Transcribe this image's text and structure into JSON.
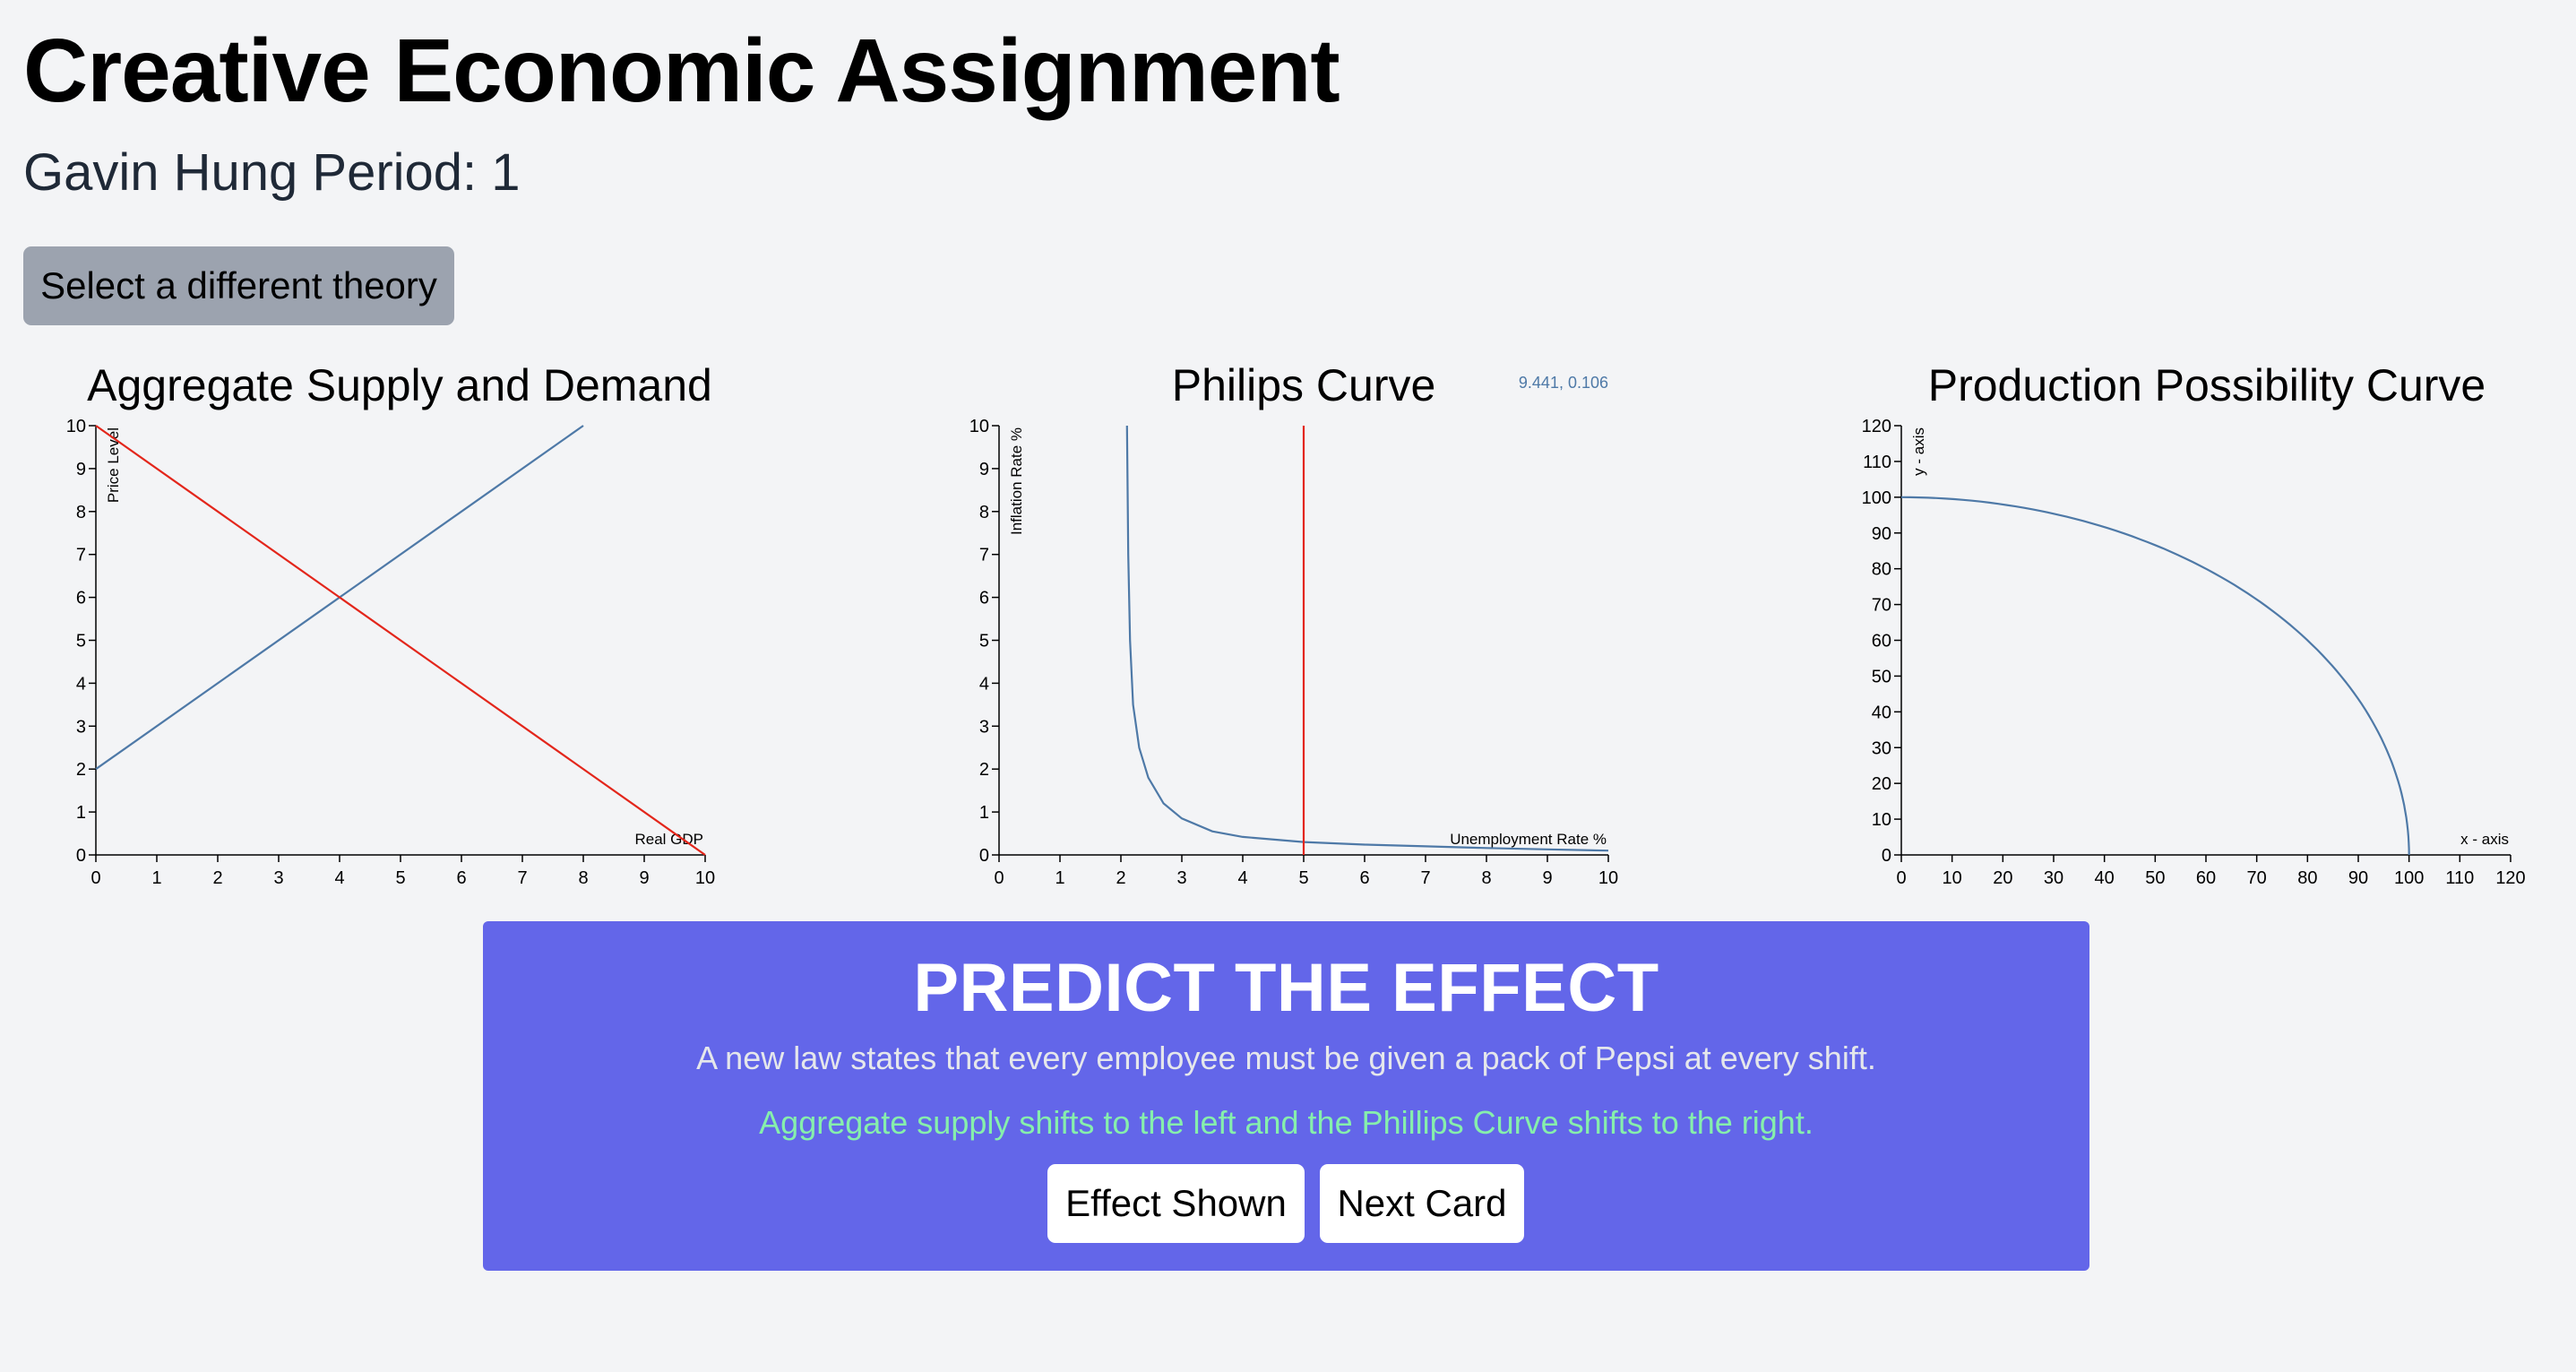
{
  "header": {
    "title": "Creative Economic Assignment",
    "subtitle": "Gavin Hung Period: 1"
  },
  "theory_button_label": "Select a different theory",
  "colors": {
    "background": "#f3f4f6",
    "series_blue": "#4e79a7",
    "series_red": "#e3261b",
    "panel": "#6366e9",
    "answer_text": "#86efac",
    "theory_button": "#9ca3af"
  },
  "chart_data": [
    {
      "type": "line",
      "title": "Aggregate Supply and Demand",
      "xlabel": "Real GDP",
      "ylabel": "Price Level",
      "xlim": [
        0,
        10
      ],
      "ylim": [
        0,
        10
      ],
      "xticks": [
        0,
        1,
        2,
        3,
        4,
        5,
        6,
        7,
        8,
        9,
        10
      ],
      "yticks": [
        0,
        1,
        2,
        3,
        4,
        5,
        6,
        7,
        8,
        9,
        10
      ],
      "grid": false,
      "series": [
        {
          "color": "#4e79a7",
          "points": [
            [
              0,
              2
            ],
            [
              8,
              10
            ]
          ]
        },
        {
          "color": "#e3261b",
          "points": [
            [
              0,
              10
            ],
            [
              10,
              0
            ]
          ]
        }
      ]
    },
    {
      "type": "line",
      "title": "Philips Curve",
      "xlabel": "Unemployment Rate %",
      "ylabel": "Inflation Rate %",
      "xlim": [
        0,
        10
      ],
      "ylim": [
        0,
        10
      ],
      "xticks": [
        0,
        1,
        2,
        3,
        4,
        5,
        6,
        7,
        8,
        9,
        10
      ],
      "yticks": [
        0,
        1,
        2,
        3,
        4,
        5,
        6,
        7,
        8,
        9,
        10
      ],
      "grid": false,
      "cursor_readout": "9.441, 0.106",
      "series": [
        {
          "color": "#4e79a7",
          "points": [
            [
              2.1,
              10
            ],
            [
              2.12,
              7
            ],
            [
              2.15,
              5
            ],
            [
              2.2,
              3.5
            ],
            [
              2.3,
              2.5
            ],
            [
              2.45,
              1.8
            ],
            [
              2.7,
              1.2
            ],
            [
              3.0,
              0.85
            ],
            [
              3.5,
              0.55
            ],
            [
              4.0,
              0.42
            ],
            [
              5.0,
              0.3
            ],
            [
              6.0,
              0.24
            ],
            [
              7.0,
              0.2
            ],
            [
              8.0,
              0.16
            ],
            [
              9.0,
              0.13
            ],
            [
              10.0,
              0.1
            ]
          ]
        },
        {
          "color": "#e3261b",
          "points": [
            [
              5,
              0
            ],
            [
              5,
              10
            ]
          ]
        }
      ]
    },
    {
      "type": "line",
      "title": "Production Possibility Curve",
      "xlabel": "x - axis",
      "ylabel": "y - axis",
      "xlim": [
        0,
        120
      ],
      "ylim": [
        0,
        120
      ],
      "xticks": [
        0,
        10,
        20,
        30,
        40,
        50,
        60,
        70,
        80,
        90,
        100,
        110,
        120
      ],
      "yticks": [
        0,
        10,
        20,
        30,
        40,
        50,
        60,
        70,
        80,
        90,
        100,
        110,
        120
      ],
      "grid": false,
      "series": [
        {
          "color": "#4e79a7",
          "curve": "quarter-circle",
          "radius": 100
        }
      ]
    }
  ],
  "predict": {
    "title": "PREDICT THE EFFECT",
    "scenario": "A new law states that every employee must be given a pack of Pepsi at every shift.",
    "answer": "Aggregate supply shifts to the left and the Phillips Curve shifts to the right.",
    "effect_button": "Effect Shown",
    "next_button": "Next Card"
  }
}
